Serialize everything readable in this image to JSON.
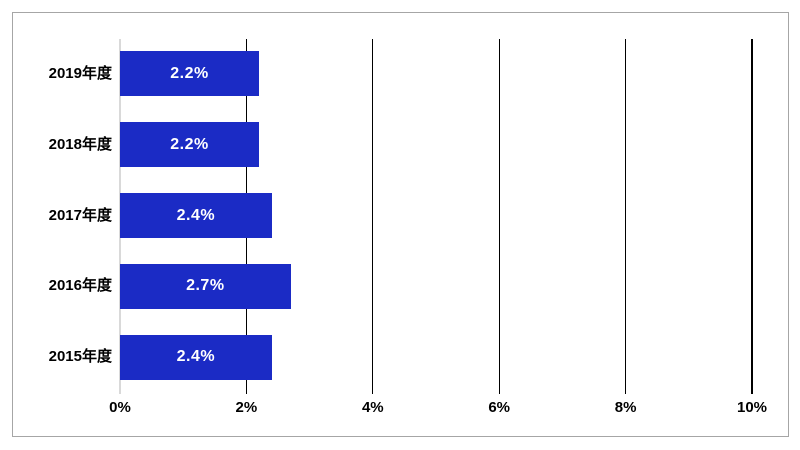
{
  "chart": {
    "title": "",
    "colors": {
      "background": "#ffffff",
      "bar": "#1b2bc5",
      "bar_label": "#ffffff",
      "gridline": "#000000",
      "zero_axis_line": "#d9d9d9",
      "frame_border": "#a6a6a6",
      "text": "#000000"
    }
  },
  "chart_data": {
    "type": "bar",
    "orientation": "horizontal",
    "title": "",
    "xlabel": "",
    "ylabel": "",
    "categories": [
      "2019年度",
      "2018年度",
      "2017年度",
      "2016年度",
      "2015年度"
    ],
    "values": [
      2.2,
      2.2,
      2.4,
      2.7,
      2.4
    ],
    "value_labels": [
      "2.2%",
      "2.2%",
      "2.4%",
      "2.7%",
      "2.4%"
    ],
    "unit": "%",
    "xlim": [
      0,
      10
    ],
    "x_tick_values": [
      0,
      2,
      4,
      6,
      8,
      10
    ],
    "x_tick_labels": [
      "0%",
      "2%",
      "4%",
      "6%",
      "8%",
      "10%"
    ],
    "grid": true,
    "legend": false
  }
}
